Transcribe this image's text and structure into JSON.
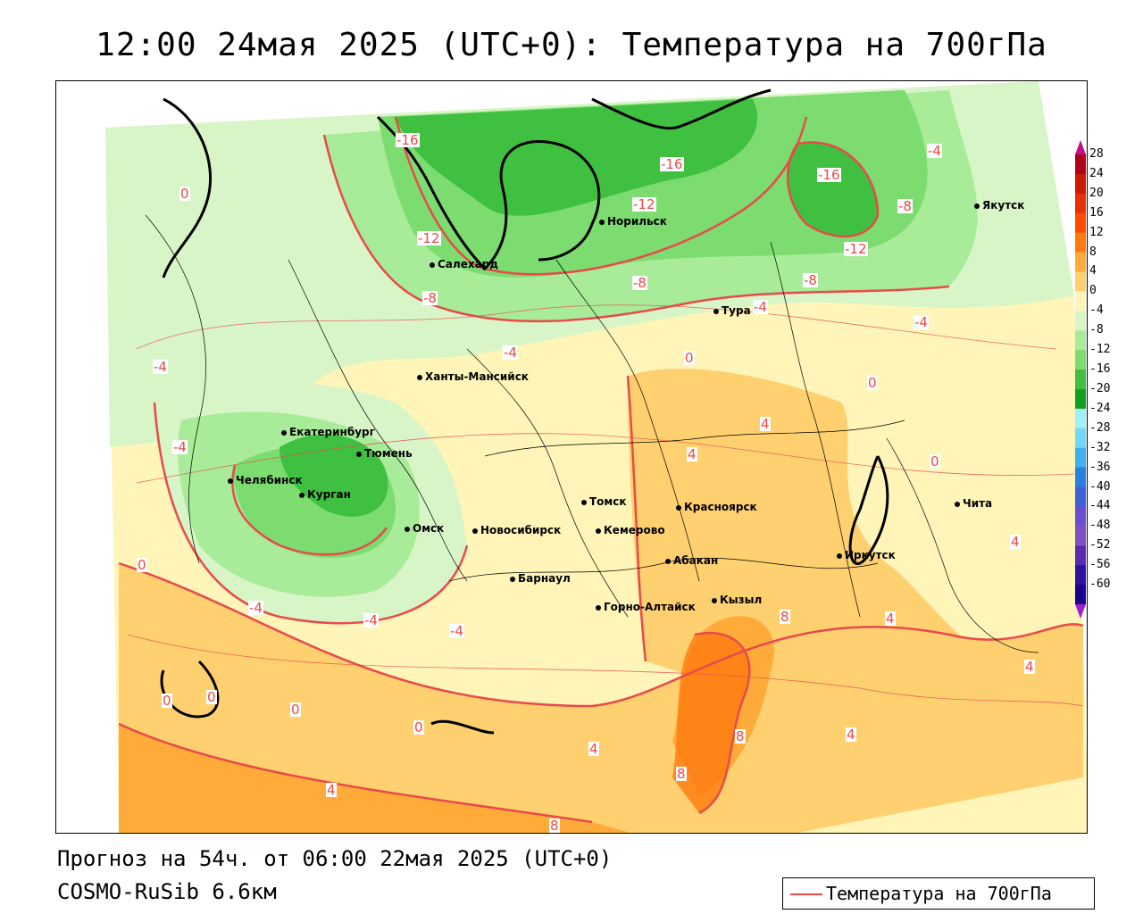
{
  "title": "12:00 24мая 2025 (UTC+0): Температура на 700гПа",
  "forecast_line": "Прогноз на 54ч. от 06:00 22мая 2025 (UTC+0)",
  "model_line": "COSMO-RuSib 6.6км",
  "legend": {
    "label": "Температура на 700гПа",
    "color": "#e84a4a"
  },
  "colorbar": {
    "ticks": [
      "28",
      "24",
      "20",
      "16",
      "12",
      "8",
      "4",
      "0",
      "-4",
      "-8",
      "-12",
      "-16",
      "-20",
      "-24",
      "-28",
      "-32",
      "-36",
      "-40",
      "-44",
      "-48",
      "-52",
      "-56",
      "-60"
    ],
    "colors": [
      "#b0001a",
      "#cc1a00",
      "#e63200",
      "#ff4a00",
      "#ff7a10",
      "#ffab3a",
      "#ffd070",
      "#fff5b8",
      "#d8f5c8",
      "#a8eb98",
      "#7cdc70",
      "#40c040",
      "#10a020",
      "#a0f0f8",
      "#70d8f8",
      "#40b0f0",
      "#2a80e0",
      "#4060d8",
      "#6a50d0",
      "#8050c8",
      "#5a2ab0",
      "#3010a0",
      "#1a0090"
    ]
  },
  "cities": [
    {
      "name": "Салехард"
    },
    {
      "name": "Норильск"
    },
    {
      "name": "Тура"
    },
    {
      "name": "Якутск"
    },
    {
      "name": "Ханты-Мансийск"
    },
    {
      "name": "Екатеринбург"
    },
    {
      "name": "Тюмень"
    },
    {
      "name": "Челябинск"
    },
    {
      "name": "Курган"
    },
    {
      "name": "Омск"
    },
    {
      "name": "Новосибирск"
    },
    {
      "name": "Томск"
    },
    {
      "name": "Кемерово"
    },
    {
      "name": "Барнаул"
    },
    {
      "name": "Горно-Алтайск"
    },
    {
      "name": "Красноярск"
    },
    {
      "name": "Абакан"
    },
    {
      "name": "Кызыл"
    },
    {
      "name": "Иркутск"
    },
    {
      "name": "Чита"
    }
  ],
  "contour_labels": [
    "-16",
    "-16",
    "-16",
    "-12",
    "-12",
    "-12",
    "-8",
    "-8",
    "-8",
    "-8",
    "-4",
    "-4",
    "-4",
    "-4",
    "-4",
    "-4",
    "-4",
    "-4",
    "-4",
    "0",
    "0",
    "0",
    "0",
    "0",
    "0",
    "0",
    "0",
    "0",
    "4",
    "4",
    "4",
    "4",
    "4",
    "4",
    "4",
    "4",
    "8",
    "8",
    "8",
    "8"
  ]
}
